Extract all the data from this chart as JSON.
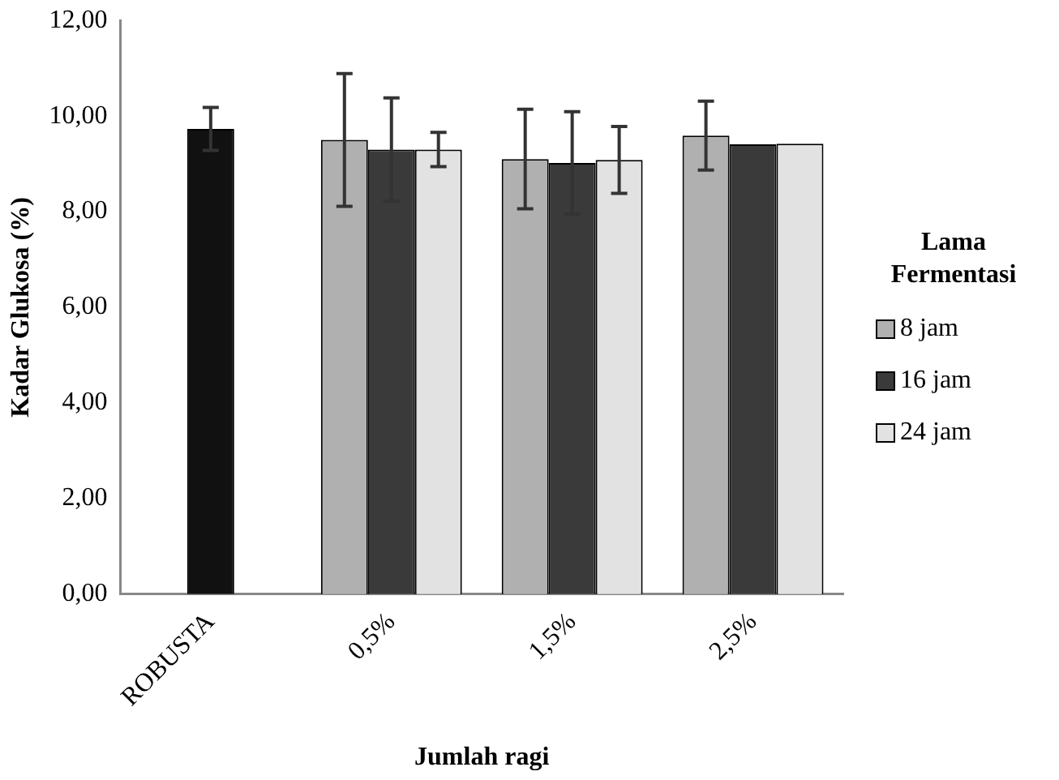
{
  "chart_data": {
    "type": "bar",
    "xlabel": "Jumlah ragi",
    "ylabel": "Kadar Glukosa (%)",
    "legend_title": "Lama Fermentasi",
    "legend": "right",
    "categories": [
      "ROBUSTA",
      "0,5%",
      "1,5%",
      "2,5%"
    ],
    "series": [
      {
        "color": "#111111",
        "values": [
          9.73,
          null,
          null,
          null
        ],
        "errors": [
          0.45,
          null,
          null,
          null
        ]
      },
      {
        "name": "8 jam",
        "color": "#b0b0b0",
        "values": [
          null,
          9.5,
          9.1,
          9.59
        ],
        "errors": [
          null,
          1.39,
          1.04,
          0.72
        ]
      },
      {
        "name": "16 jam",
        "color": "#3a3a3a",
        "values": [
          null,
          9.3,
          9.02,
          9.41
        ],
        "errors": [
          null,
          1.08,
          1.07,
          null
        ]
      },
      {
        "name": "24 jam",
        "color": "#e2e2e2",
        "values": [
          null,
          9.3,
          9.08,
          9.42
        ],
        "errors": [
          null,
          0.36,
          0.7,
          null
        ]
      }
    ],
    "ylim": [
      0,
      12
    ],
    "yticks": [
      {
        "value": 0,
        "label": "0,00"
      },
      {
        "value": 2,
        "label": "2,00"
      },
      {
        "value": 4,
        "label": "4,00"
      },
      {
        "value": 6,
        "label": "6,00"
      },
      {
        "value": 8,
        "label": "8,00"
      },
      {
        "value": 10,
        "label": "10,00"
      },
      {
        "value": 12,
        "label": "12,00"
      }
    ],
    "grid": false
  }
}
